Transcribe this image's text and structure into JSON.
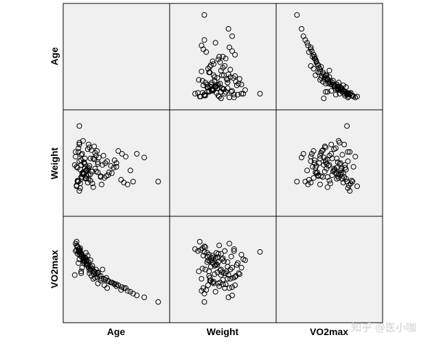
{
  "chart_data": {
    "type": "scatter",
    "variables": [
      "Age",
      "Weight",
      "VO2max"
    ],
    "layout": "scatterplot-matrix",
    "grid": false,
    "marker": "open-circle",
    "colors": {
      "panel_bg": "#f0f0f0",
      "border": "#000000",
      "marker": "#000000"
    },
    "note": "Diagonal panels are empty. Values expressed as fractions of each variable's range (0 = min, 1 = max) since no tick labels are printed.",
    "pairs": {
      "age": [
        0.18,
        0.06,
        0.12,
        0.15,
        0.08,
        0.25,
        0.2,
        0.1,
        0.3,
        0.07,
        0.13,
        0.22,
        0.05,
        0.17,
        0.4,
        0.1,
        0.28,
        0.16,
        0.33,
        0.09,
        0.19,
        0.12,
        0.24,
        0.14,
        0.37,
        0.06,
        0.21,
        0.11,
        0.29,
        0.45,
        0.15,
        0.08,
        0.26,
        0.18,
        0.34,
        0.12,
        0.5,
        0.2,
        0.1,
        0.55,
        0.16,
        0.3,
        0.07,
        0.23,
        0.42,
        0.13,
        0.6,
        0.19,
        0.09,
        0.27,
        0.35,
        0.14,
        0.48,
        0.11,
        0.21,
        0.65,
        0.17,
        0.38,
        0.08,
        0.25,
        0.72,
        0.15,
        0.31,
        0.12,
        0.44,
        0.2,
        0.58,
        0.1,
        0.28,
        0.18,
        0.52,
        0.07,
        0.22,
        0.36,
        0.14,
        0.62,
        0.26,
        0.11,
        0.41,
        0.19,
        0.68,
        0.16,
        0.33,
        0.09,
        0.47,
        0.24,
        0.8,
        0.13,
        0.3,
        0.2,
        0.56,
        0.17,
        0.39,
        0.12,
        0.95,
        0.22,
        0.27,
        0.15,
        0.5,
        0.1
      ],
      "weight": [
        0.42,
        0.62,
        0.35,
        0.5,
        0.3,
        0.55,
        0.45,
        0.7,
        0.4,
        0.25,
        0.6,
        0.38,
        0.48,
        0.33,
        0.52,
        0.2,
        0.58,
        0.44,
        0.36,
        0.66,
        0.29,
        0.53,
        0.41,
        0.74,
        0.34,
        0.57,
        0.47,
        0.23,
        0.63,
        0.39,
        0.51,
        0.31,
        0.68,
        0.43,
        0.27,
        0.59,
        0.46,
        0.37,
        0.72,
        0.32,
        0.55,
        0.49,
        0.26,
        0.64,
        0.4,
        0.35,
        0.57,
        0.44,
        0.3,
        0.61,
        0.48,
        0.38,
        0.53,
        0.28,
        0.67,
        0.42,
        0.34,
        0.5,
        0.45,
        0.24,
        0.6,
        0.39,
        0.56,
        0.33,
        0.47,
        0.7,
        0.29,
        0.52,
        0.41,
        0.36,
        0.63,
        0.46,
        0.31,
        0.58,
        0.4,
        0.27,
        0.54,
        0.43,
        0.37,
        0.65,
        0.3,
        0.49,
        0.35,
        0.62,
        0.45,
        0.28,
        0.56,
        0.39,
        0.51,
        0.33,
        0.6,
        0.42,
        0.36,
        0.48,
        0.3,
        0.55,
        0.44,
        0.38,
        0.5,
        0.9
      ],
      "vo2max": [
        0.55,
        0.7,
        0.48,
        0.62,
        0.75,
        0.4,
        0.58,
        0.66,
        0.35,
        0.8,
        0.52,
        0.6,
        0.44,
        0.68,
        0.3,
        0.72,
        0.5,
        0.63,
        0.38,
        0.57,
        0.65,
        0.46,
        0.54,
        0.6,
        0.33,
        0.78,
        0.49,
        0.7,
        0.42,
        0.36,
        0.59,
        0.74,
        0.45,
        0.56,
        0.4,
        0.64,
        0.32,
        0.53,
        0.61,
        0.28,
        0.58,
        0.47,
        0.71,
        0.43,
        0.37,
        0.66,
        0.3,
        0.55,
        0.69,
        0.41,
        0.5,
        0.62,
        0.34,
        0.73,
        0.46,
        0.26,
        0.6,
        0.39,
        0.67,
        0.48,
        0.22,
        0.57,
        0.44,
        0.64,
        0.36,
        0.52,
        0.3,
        0.7,
        0.45,
        0.59,
        0.33,
        0.76,
        0.5,
        0.4,
        0.63,
        0.27,
        0.48,
        0.68,
        0.38,
        0.55,
        0.24,
        0.61,
        0.43,
        0.72,
        0.35,
        0.51,
        0.2,
        0.65,
        0.46,
        0.58,
        0.31,
        0.62,
        0.41,
        0.67,
        0.15,
        0.53,
        0.47,
        0.6,
        0.34,
        0.69
      ]
    }
  },
  "labels": {
    "row": [
      "Age",
      "Weight",
      "VO2max"
    ],
    "col": [
      "Age",
      "Weight",
      "VO2max"
    ]
  },
  "watermark": "知乎 @医小咖"
}
